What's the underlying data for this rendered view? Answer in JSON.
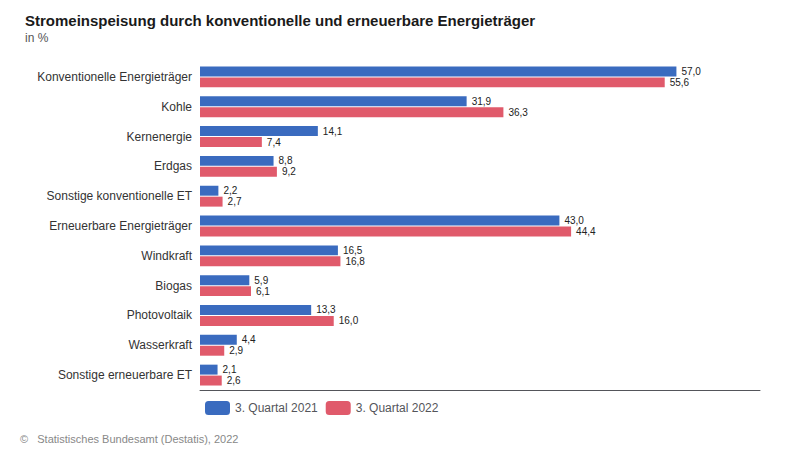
{
  "chart_data": {
    "type": "bar",
    "orientation": "horizontal",
    "title": "Stromeinspeisung durch konventionelle und erneuerbare Energieträger",
    "subtitle": "in %",
    "categories": [
      "Konventionelle Energieträger",
      "Kohle",
      "Kernenergie",
      "Erdgas",
      "Sonstige konventionelle ET",
      "Erneuerbare Energieträger",
      "Windkraft",
      "Biogas",
      "Photovoltaik",
      "Wasserkraft",
      "Sonstige erneuerbare ET"
    ],
    "series": [
      {
        "name": "3. Quartal 2021",
        "color": "#3a6bbf",
        "values": [
          57.0,
          31.9,
          14.1,
          8.8,
          2.2,
          43.0,
          16.5,
          5.9,
          13.3,
          4.4,
          2.1
        ],
        "value_labels": [
          "57,0",
          "31,9",
          "14,1",
          "8,8",
          "2,2",
          "43,0",
          "16,5",
          "5,9",
          "13,3",
          "4,4",
          "2,1"
        ]
      },
      {
        "name": "3. Quartal 2022",
        "color": "#e05a6b",
        "values": [
          55.6,
          36.3,
          7.4,
          9.2,
          2.7,
          44.4,
          16.8,
          6.1,
          16.0,
          2.9,
          2.6
        ],
        "value_labels": [
          "55,6",
          "36,3",
          "7,4",
          "9,2",
          "2,7",
          "44,4",
          "16,8",
          "6,1",
          "16,0",
          "2,9",
          "2,6"
        ]
      }
    ],
    "xlim": [
      0,
      67
    ],
    "grid": false,
    "legend": "lower left",
    "data_labels": true,
    "tick_labels": "y",
    "annotations": [
      "©   Statistisches Bundesamt (Destatis), 2022"
    ]
  }
}
